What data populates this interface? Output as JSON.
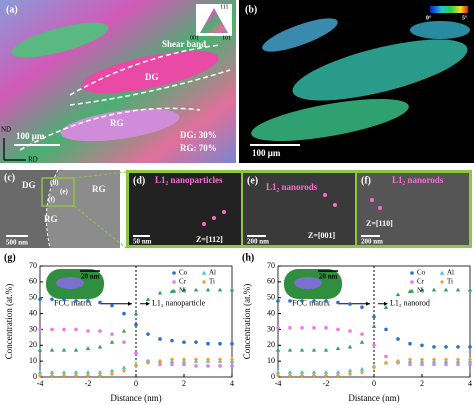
{
  "panels": {
    "a": {
      "label": "(a)",
      "annotations": [
        "Shear band",
        "DG",
        "RG",
        "DG: 30%",
        "RG: 70%"
      ],
      "scale": "100 μm",
      "axes": [
        "ND",
        "RD"
      ],
      "ipf": [
        "111",
        "001",
        "101"
      ]
    },
    "b": {
      "label": "(b)",
      "scale": "100 μm",
      "colorbar": [
        "0°",
        "5°"
      ]
    },
    "c": {
      "label": "(c)",
      "annotations": [
        "DG",
        "RG",
        "RG",
        "(d)",
        "(e)",
        "(f)"
      ],
      "scale": "500 nm"
    },
    "d": {
      "label": "(d)",
      "title": "L1₂ nanoparticles",
      "scale": "50 nm",
      "zone": "Z=[112]"
    },
    "e": {
      "label": "(e)",
      "title": "L1₂ nanorods",
      "scale": "200 nm",
      "zone": "Z=[001]"
    },
    "f": {
      "label": "(f)",
      "title": "L1₂ nanorods",
      "scale": "200 nm",
      "zone": "Z=[110]"
    }
  },
  "chart_data": [
    {
      "type": "line",
      "label": "(g)",
      "xlabel": "Distance (nm)",
      "ylabel": "Concentration (at.%)",
      "annotations": [
        "FCC matrix",
        "L1₂ nanoparticle"
      ],
      "inset_scale": "20 nm",
      "x": [
        -4,
        -3.5,
        -3,
        -2.5,
        -2,
        -1.5,
        -1,
        -0.5,
        0,
        0.5,
        1,
        1.5,
        2,
        2.5,
        3,
        3.5,
        4
      ],
      "xlim": [
        -4,
        4
      ],
      "xticks": [
        -4,
        -2,
        0,
        2,
        4
      ],
      "ylim": [
        0,
        70
      ],
      "yticks": [
        0,
        10,
        20,
        30,
        40,
        50,
        60,
        70
      ],
      "series": [
        {
          "name": "Co",
          "color": "#2f6fc9",
          "marker": "circle",
          "values": [
            49,
            49,
            49,
            48,
            48,
            47,
            45,
            40,
            33,
            27,
            24,
            23,
            22,
            22,
            21,
            21,
            21
          ]
        },
        {
          "name": "Cr",
          "color": "#e77be6",
          "marker": "circle",
          "values": [
            30,
            30,
            30,
            30,
            29,
            29,
            27,
            22,
            15,
            10,
            8,
            8,
            8,
            7,
            7,
            7,
            7
          ]
        },
        {
          "name": "Ni",
          "color": "#2fa055",
          "marker": "triangle",
          "values": [
            17,
            17,
            17,
            17,
            18,
            19,
            22,
            29,
            40,
            49,
            53,
            54,
            55,
            55,
            55,
            55,
            55
          ]
        },
        {
          "name": "Al",
          "color": "#3cc4df",
          "marker": "triangle",
          "values": [
            3,
            3,
            3,
            3,
            3,
            3,
            4,
            6,
            8,
            10,
            10,
            10,
            10,
            10,
            10,
            10,
            10
          ]
        },
        {
          "name": "Ti",
          "color": "#f0a02a",
          "marker": "diamond",
          "values": [
            1,
            1,
            1,
            1,
            1,
            1,
            2,
            4,
            7,
            9,
            10,
            11,
            11,
            11,
            11,
            11,
            11
          ]
        }
      ]
    },
    {
      "type": "line",
      "label": "(h)",
      "xlabel": "Distance (nm)",
      "ylabel": "Concentration (at.%)",
      "annotations": [
        "FCC matrix",
        "L1₂ nanorod"
      ],
      "inset_scale": "20 nm",
      "x": [
        -4,
        -3.5,
        -3,
        -2.5,
        -2,
        -1.5,
        -1,
        -0.5,
        0,
        0.5,
        1,
        1.5,
        2,
        2.5,
        3,
        3.5,
        4
      ],
      "xlim": [
        -4,
        4
      ],
      "xticks": [
        -4,
        -2,
        0,
        2,
        4
      ],
      "ylim": [
        0,
        70
      ],
      "yticks": [
        0,
        10,
        20,
        30,
        40,
        50,
        60,
        70
      ],
      "series": [
        {
          "name": "Co",
          "color": "#2f6fc9",
          "marker": "circle",
          "values": [
            48,
            48,
            48,
            48,
            48,
            47,
            46,
            44,
            38,
            30,
            24,
            21,
            20,
            19,
            19,
            19,
            19
          ]
        },
        {
          "name": "Cr",
          "color": "#e77be6",
          "marker": "circle",
          "values": [
            31,
            31,
            31,
            31,
            31,
            30,
            29,
            27,
            20,
            13,
            9,
            8,
            8,
            8,
            8,
            8,
            8
          ]
        },
        {
          "name": "Ni",
          "color": "#2fa055",
          "marker": "triangle",
          "values": [
            17,
            17,
            17,
            17,
            17,
            18,
            19,
            22,
            32,
            44,
            52,
            54,
            55,
            55,
            55,
            55,
            55
          ]
        },
        {
          "name": "Al",
          "color": "#3cc4df",
          "marker": "triangle",
          "values": [
            3,
            3,
            3,
            3,
            3,
            3,
            4,
            5,
            7,
            9,
            10,
            10,
            10,
            10,
            10,
            10,
            10
          ]
        },
        {
          "name": "Ti",
          "color": "#f0a02a",
          "marker": "diamond",
          "values": [
            1,
            1,
            1,
            1,
            1,
            1,
            2,
            3,
            6,
            9,
            10,
            11,
            11,
            11,
            11,
            11,
            11
          ]
        }
      ]
    }
  ]
}
